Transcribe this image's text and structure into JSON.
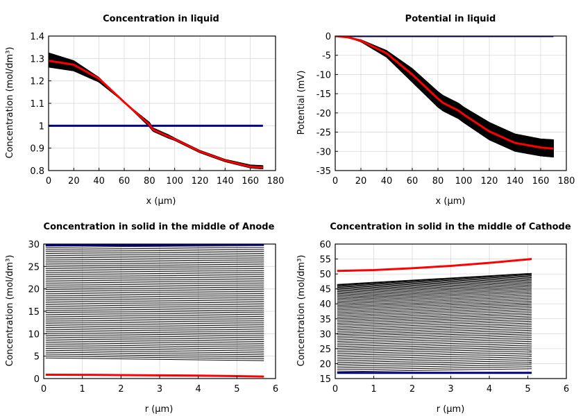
{
  "chart_data": [
    {
      "type": "line",
      "title": "Concentration in liquid",
      "xlabel": "x (µm)",
      "ylabel": "Concentration (mol/dm³)",
      "xlim": [
        0,
        180
      ],
      "ylim": [
        0.8,
        1.4
      ],
      "xticks": [
        "0",
        "20",
        "40",
        "60",
        "80",
        "100",
        "120",
        "140",
        "160",
        "180"
      ],
      "yticks": [
        "0.8",
        "0.9",
        "1",
        "1.1",
        "1.2",
        "1.3",
        "1.4"
      ],
      "grid": true,
      "family": {
        "color": "#000000",
        "count": 30,
        "x": [
          0,
          20,
          40,
          60,
          80,
          83,
          95,
          100,
          120,
          140,
          160,
          170
        ],
        "upper": [
          1.325,
          1.29,
          1.215,
          1.105,
          1.015,
          0.99,
          0.96,
          0.945,
          0.89,
          0.85,
          0.825,
          0.822
        ],
        "lower": [
          1.262,
          1.245,
          1.195,
          1.105,
          0.995,
          0.975,
          0.945,
          0.935,
          0.88,
          0.84,
          0.812,
          0.808
        ]
      },
      "series": [
        {
          "color": "#000000",
          "x": [
            0,
            20,
            40,
            60,
            80,
            83,
            95,
            100,
            120,
            140,
            160,
            170
          ],
          "y": [
            1.262,
            1.245,
            1.195,
            1.105,
            0.995,
            0.975,
            0.945,
            0.935,
            0.88,
            0.84,
            0.812,
            0.808
          ]
        },
        {
          "color": "#000080",
          "x": [
            0,
            170
          ],
          "y": [
            1.0,
            1.0
          ]
        },
        {
          "color": "#ff0000",
          "x": [
            0,
            20,
            40,
            60,
            80,
            83,
            95,
            100,
            120,
            140,
            160,
            170
          ],
          "y": [
            1.29,
            1.272,
            1.21,
            1.105,
            1.005,
            0.982,
            0.952,
            0.94,
            0.885,
            0.845,
            0.817,
            0.814
          ]
        }
      ]
    },
    {
      "type": "line",
      "title": "Potential in liquid",
      "xlabel": "x (µm)",
      "ylabel": "Potential (mV)",
      "xlim": [
        0,
        180
      ],
      "ylim": [
        -35,
        0
      ],
      "xticks": [
        "0",
        "20",
        "40",
        "60",
        "80",
        "100",
        "120",
        "140",
        "160",
        "180"
      ],
      "yticks": [
        "-35",
        "-30",
        "-25",
        "-20",
        "-15",
        "-10",
        "-5",
        "0"
      ],
      "grid": true,
      "family": {
        "color": "#000000",
        "count": 30,
        "x": [
          0,
          10,
          20,
          40,
          60,
          80,
          84,
          96,
          100,
          120,
          140,
          160,
          170
        ],
        "upper": [
          0,
          -0.3,
          -1.0,
          -3.8,
          -8.5,
          -14.5,
          -15.5,
          -17.5,
          -18.5,
          -22.5,
          -25.5,
          -26.8,
          -27.0
        ],
        "lower": [
          0,
          -0.4,
          -1.5,
          -5.5,
          -12.0,
          -18.5,
          -19.5,
          -21.5,
          -22.5,
          -27.0,
          -30.0,
          -31.2,
          -31.5
        ]
      },
      "series": [
        {
          "color": "#000000",
          "x": [
            0,
            10,
            20,
            40,
            60,
            80,
            84,
            96,
            100,
            120,
            140,
            160,
            170
          ],
          "y": [
            0,
            -0.3,
            -1.0,
            -3.8,
            -8.5,
            -14.5,
            -15.5,
            -17.5,
            -18.5,
            -22.5,
            -25.5,
            -26.8,
            -27.0
          ]
        },
        {
          "color": "#000080",
          "x": [
            0,
            170
          ],
          "y": [
            0,
            0
          ]
        },
        {
          "color": "#ff0000",
          "x": [
            0,
            10,
            20,
            40,
            60,
            80,
            84,
            96,
            100,
            120,
            140,
            160,
            170
          ],
          "y": [
            0,
            -0.35,
            -1.2,
            -4.5,
            -10.0,
            -16.3,
            -17.4,
            -19.4,
            -20.4,
            -24.8,
            -27.8,
            -29.0,
            -29.3
          ]
        }
      ]
    },
    {
      "type": "line",
      "title": "Concentration in solid in the middle of Anode",
      "xlabel": "r (µm)",
      "ylabel": "Concentration (mol/dm³)",
      "xlim": [
        0,
        6
      ],
      "ylim": [
        0,
        30
      ],
      "xticks": [
        "0",
        "1",
        "2",
        "3",
        "4",
        "5",
        "6"
      ],
      "yticks": [
        "0",
        "5",
        "10",
        "15",
        "20",
        "25",
        "30"
      ],
      "grid": true,
      "family": {
        "color": "#000000",
        "count": 60,
        "x": [
          0.05,
          5.7
        ],
        "top_start": [
          29.6,
          29.2
        ],
        "bottom_start": [
          4.6,
          4.0
        ]
      },
      "series": [
        {
          "color": "#000080",
          "x": [
            0.05,
            5.7
          ],
          "y": [
            29.7,
            29.8
          ]
        },
        {
          "color": "#ff0000",
          "x": [
            0.05,
            1.0,
            1.5,
            2.0,
            3.0,
            4.0,
            5.0,
            5.7
          ],
          "y": [
            0.85,
            0.83,
            0.82,
            0.78,
            0.72,
            0.65,
            0.55,
            0.45
          ]
        }
      ]
    },
    {
      "type": "line",
      "title": "Concentration in solid in the middle of Cathode",
      "xlabel": "r (µm)",
      "ylabel": "Concentration (mol/dm³)",
      "xlim": [
        0,
        6
      ],
      "ylim": [
        15,
        60
      ],
      "xticks": [
        "0",
        "1",
        "2",
        "3",
        "4",
        "5",
        "6"
      ],
      "yticks": [
        "15",
        "20",
        "25",
        "30",
        "35",
        "40",
        "45",
        "50",
        "55",
        "60"
      ],
      "grid": true,
      "family": {
        "color": "#000000",
        "count": 60,
        "x": [
          0.05,
          5.1
        ],
        "top": [
          46.5,
          50.2
        ],
        "bottom": [
          17.3,
          18.3
        ]
      },
      "series": [
        {
          "color": "#000080",
          "x": [
            0.05,
            5.1
          ],
          "y": [
            16.9,
            16.9
          ]
        },
        {
          "color": "#ff0000",
          "x": [
            0.05,
            1.0,
            2.0,
            3.0,
            4.0,
            5.1
          ],
          "y": [
            51.0,
            51.3,
            51.9,
            52.7,
            53.7,
            55.0
          ]
        }
      ]
    }
  ]
}
